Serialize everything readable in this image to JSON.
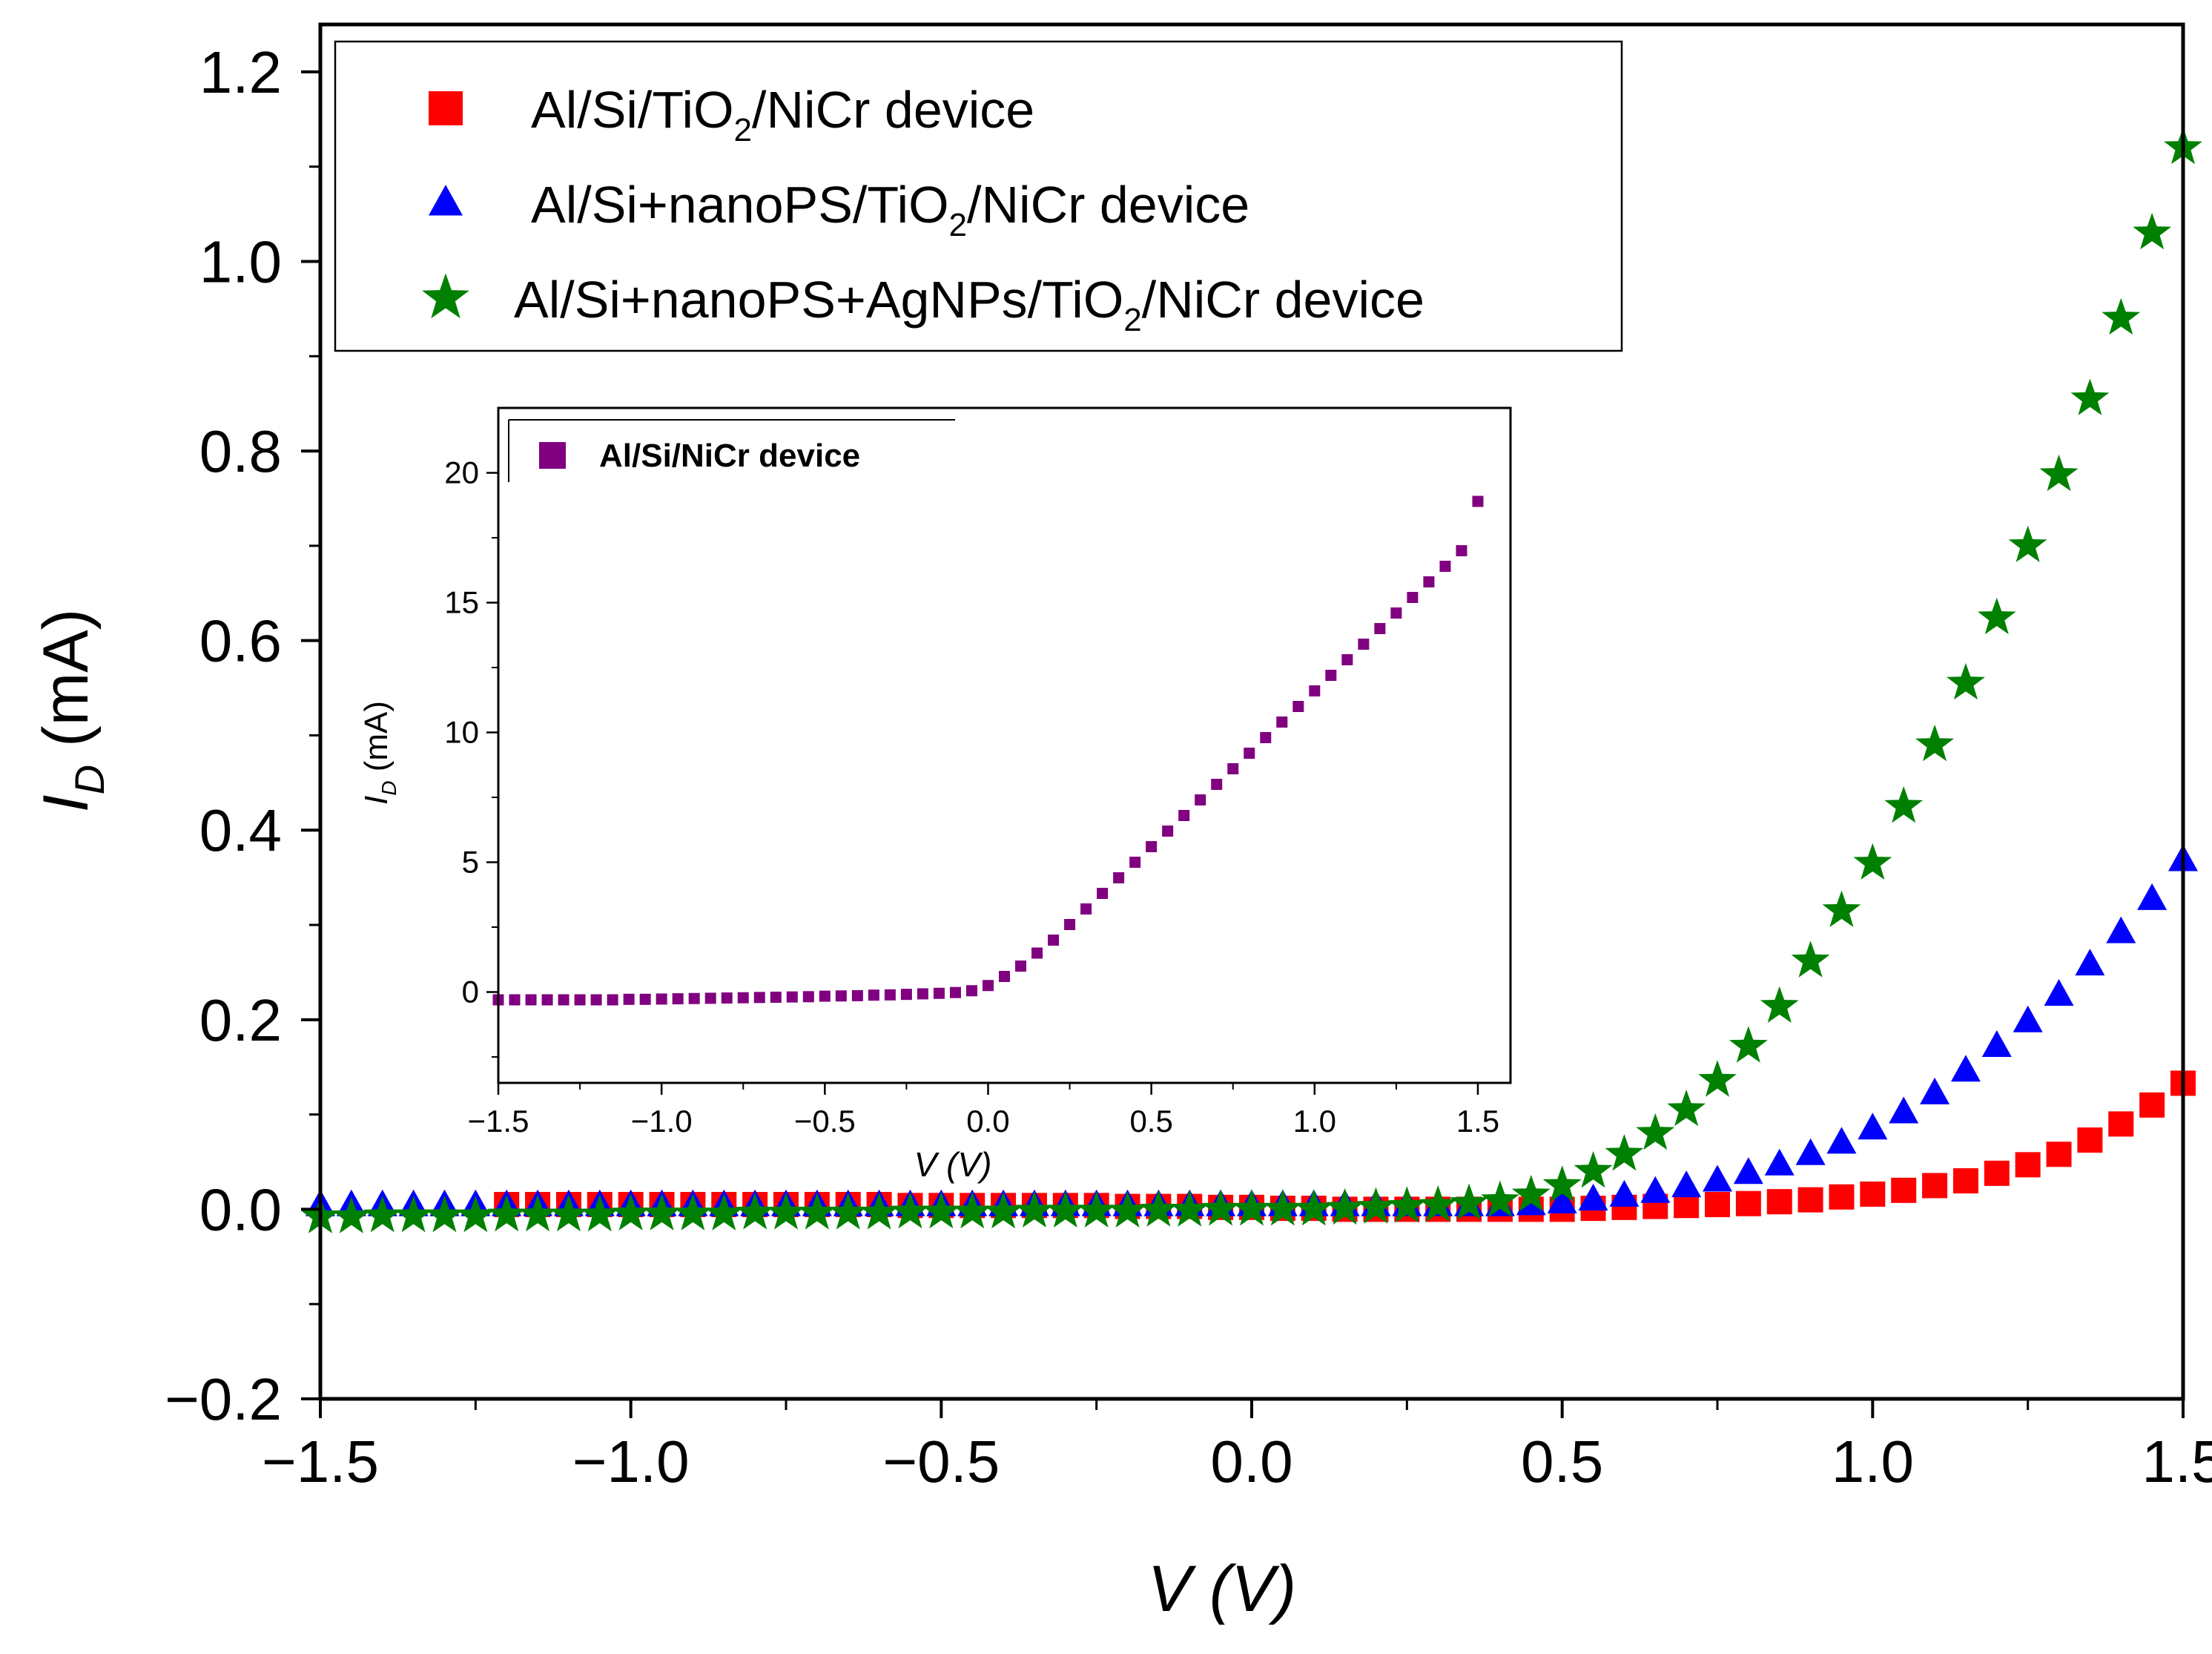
{
  "chart_data": [
    {
      "type": "scatter",
      "title": "",
      "xlabel": {
        "var": "V",
        "unit": "(V)"
      },
      "ylabel": {
        "var": "I",
        "sub": "D",
        "unit": "(mA)"
      },
      "xlim": [
        -1.5,
        1.5
      ],
      "ylim": [
        -0.2,
        1.25
      ],
      "xticks": [
        -1.5,
        -1.0,
        -0.5,
        0.0,
        0.5,
        1.0,
        1.5
      ],
      "xtick_labels": [
        "−1.5",
        "−1.0",
        "−0.5",
        "0.0",
        "0.5",
        "1.0",
        "1.5"
      ],
      "yticks": [
        -0.2,
        0.0,
        0.2,
        0.4,
        0.6,
        0.8,
        1.0,
        1.2
      ],
      "ytick_labels": [
        "−0.2",
        "0.0",
        "0.2",
        "0.4",
        "0.6",
        "0.8",
        "1.0",
        "1.2"
      ],
      "grid": false,
      "legend_position": "top-left",
      "series": [
        {
          "name": "Al/Si/TiO2/NiCr device",
          "legend": {
            "pre": "Al/Si/TiO",
            "sub": "2",
            "post": "/NiCr device"
          },
          "marker": "square",
          "color": "#ff0000",
          "x": [
            -1.2,
            -1.15,
            -1.1,
            -1.05,
            -1.0,
            -0.95,
            -0.9,
            -0.85,
            -0.8,
            -0.75,
            -0.7,
            -0.65,
            -0.6,
            -0.55,
            -0.5,
            -0.45,
            -0.4,
            -0.35,
            -0.3,
            -0.25,
            -0.2,
            -0.15,
            -0.1,
            -0.05,
            0.0,
            0.05,
            0.1,
            0.15,
            0.2,
            0.25,
            0.3,
            0.35,
            0.4,
            0.45,
            0.5,
            0.55,
            0.6,
            0.65,
            0.7,
            0.75,
            0.8,
            0.85,
            0.9,
            0.95,
            1.0,
            1.05,
            1.1,
            1.15,
            1.2,
            1.25,
            1.3,
            1.35,
            1.4,
            1.45,
            1.5
          ],
          "y": [
            0.005,
            0.005,
            0.005,
            0.005,
            0.005,
            0.005,
            0.005,
            0.005,
            0.005,
            0.005,
            0.005,
            0.005,
            0.005,
            0.004,
            0.004,
            0.004,
            0.004,
            0.004,
            0.004,
            0.004,
            0.003,
            0.003,
            0.003,
            0.002,
            0.002,
            0.001,
            0.001,
            0.0,
            0.0,
            0.0,
            0.0,
            0.0,
            0.0,
            0.0,
            0.0,
            0.001,
            0.002,
            0.003,
            0.004,
            0.005,
            0.006,
            0.008,
            0.01,
            0.013,
            0.016,
            0.02,
            0.025,
            0.03,
            0.038,
            0.047,
            0.058,
            0.073,
            0.09,
            0.11,
            0.133
          ]
        },
        {
          "name": "Al/Si+nanoPS/TiO2/NiCr device",
          "legend": {
            "pre": "Al/Si+nanoPS/TiO",
            "sub": "2",
            "post": "/NiCr device"
          },
          "marker": "triangle",
          "color": "#0000ff",
          "x": [
            -1.5,
            -1.45,
            -1.4,
            -1.35,
            -1.3,
            -1.25,
            -1.2,
            -1.15,
            -1.1,
            -1.05,
            -1.0,
            -0.95,
            -0.9,
            -0.85,
            -0.8,
            -0.75,
            -0.7,
            -0.65,
            -0.6,
            -0.55,
            -0.5,
            -0.45,
            -0.4,
            -0.35,
            -0.3,
            -0.25,
            -0.2,
            -0.15,
            -0.1,
            -0.05,
            0.0,
            0.05,
            0.1,
            0.15,
            0.2,
            0.25,
            0.3,
            0.35,
            0.4,
            0.45,
            0.5,
            0.55,
            0.6,
            0.65,
            0.7,
            0.75,
            0.8,
            0.85,
            0.9,
            0.95,
            1.0,
            1.05,
            1.1,
            1.15,
            1.2,
            1.25,
            1.3,
            1.35,
            1.4,
            1.45,
            1.5
          ],
          "y": [
            0.004,
            0.004,
            0.004,
            0.004,
            0.004,
            0.004,
            0.004,
            0.004,
            0.004,
            0.004,
            0.004,
            0.004,
            0.004,
            0.004,
            0.004,
            0.004,
            0.004,
            0.004,
            0.004,
            0.004,
            0.004,
            0.004,
            0.004,
            0.004,
            0.004,
            0.004,
            0.004,
            0.004,
            0.004,
            0.004,
            0.004,
            0.004,
            0.004,
            0.004,
            0.004,
            0.004,
            0.004,
            0.004,
            0.004,
            0.005,
            0.007,
            0.01,
            0.014,
            0.018,
            0.024,
            0.03,
            0.038,
            0.047,
            0.058,
            0.07,
            0.085,
            0.102,
            0.122,
            0.146,
            0.172,
            0.198,
            0.226,
            0.258,
            0.292,
            0.327,
            0.368
          ]
        },
        {
          "name": "Al/Si+nanoPS+AgNPs/TiO2/NiCr device",
          "legend": {
            "pre": "Al/Si+nanoPS+AgNPs/TiO",
            "sub": "2",
            "post": "/NiCr device"
          },
          "marker": "star",
          "color": "#008000",
          "x": [
            -1.5,
            -1.45,
            -1.4,
            -1.35,
            -1.3,
            -1.25,
            -1.2,
            -1.15,
            -1.1,
            -1.05,
            -1.0,
            -0.95,
            -0.9,
            -0.85,
            -0.8,
            -0.75,
            -0.7,
            -0.65,
            -0.6,
            -0.55,
            -0.5,
            -0.45,
            -0.4,
            -0.35,
            -0.3,
            -0.25,
            -0.2,
            -0.15,
            -0.1,
            -0.05,
            0.0,
            0.05,
            0.1,
            0.15,
            0.2,
            0.25,
            0.3,
            0.35,
            0.4,
            0.45,
            0.5,
            0.55,
            0.6,
            0.65,
            0.7,
            0.75,
            0.8,
            0.85,
            0.9,
            0.95,
            1.0,
            1.05,
            1.1,
            1.15,
            1.2,
            1.25,
            1.3,
            1.35,
            1.4,
            1.45,
            1.5
          ],
          "y": [
            -0.008,
            -0.008,
            -0.007,
            -0.007,
            -0.007,
            -0.007,
            -0.006,
            -0.006,
            -0.006,
            -0.006,
            -0.005,
            -0.005,
            -0.005,
            -0.005,
            -0.004,
            -0.004,
            -0.004,
            -0.004,
            -0.004,
            -0.003,
            -0.003,
            -0.003,
            -0.003,
            -0.002,
            -0.002,
            -0.002,
            -0.002,
            -0.001,
            -0.001,
            0.0,
            0.0,
            0.0,
            0.0,
            0.001,
            0.002,
            0.003,
            0.004,
            0.006,
            0.009,
            0.015,
            0.025,
            0.04,
            0.058,
            0.08,
            0.105,
            0.136,
            0.172,
            0.214,
            0.262,
            0.315,
            0.365,
            0.425,
            0.49,
            0.555,
            0.624,
            0.7,
            0.775,
            0.855,
            0.94,
            1.03,
            1.12
          ]
        }
      ]
    },
    {
      "type": "scatter",
      "role": "inset",
      "title": "",
      "xlabel": {
        "var": "V",
        "unit": "(V)"
      },
      "ylabel": {
        "var": "I",
        "sub": "D",
        "unit": "(mA)"
      },
      "xlim": [
        -1.5,
        1.6
      ],
      "ylim": [
        -3.5,
        22.5
      ],
      "xticks": [
        -1.5,
        -1.0,
        -0.5,
        0.0,
        0.5,
        1.0,
        1.5
      ],
      "xtick_labels": [
        "−1.5",
        "−1.0",
        "−0.5",
        "0.0",
        "0.5",
        "1.0",
        "1.5"
      ],
      "yticks": [
        0,
        5,
        10,
        15,
        20
      ],
      "ytick_labels": [
        "0",
        "5",
        "10",
        "15",
        "20"
      ],
      "grid": false,
      "legend_position": "top-left",
      "series": [
        {
          "name": "Al/Si/NiCr device",
          "marker": "square",
          "color": "#800080",
          "x": [
            -1.5,
            -1.45,
            -1.4,
            -1.35,
            -1.3,
            -1.25,
            -1.2,
            -1.15,
            -1.1,
            -1.05,
            -1.0,
            -0.95,
            -0.9,
            -0.85,
            -0.8,
            -0.75,
            -0.7,
            -0.65,
            -0.6,
            -0.55,
            -0.5,
            -0.45,
            -0.4,
            -0.35,
            -0.3,
            -0.25,
            -0.2,
            -0.15,
            -0.1,
            -0.05,
            0.0,
            0.05,
            0.1,
            0.15,
            0.2,
            0.25,
            0.3,
            0.35,
            0.4,
            0.45,
            0.5,
            0.55,
            0.6,
            0.65,
            0.7,
            0.75,
            0.8,
            0.85,
            0.9,
            0.95,
            1.0,
            1.05,
            1.1,
            1.15,
            1.2,
            1.25,
            1.3,
            1.35,
            1.4,
            1.45,
            1.5
          ],
          "y": [
            -0.3,
            -0.3,
            -0.3,
            -0.3,
            -0.3,
            -0.3,
            -0.3,
            -0.3,
            -0.28,
            -0.28,
            -0.27,
            -0.26,
            -0.25,
            -0.24,
            -0.23,
            -0.22,
            -0.21,
            -0.2,
            -0.19,
            -0.18,
            -0.16,
            -0.15,
            -0.14,
            -0.12,
            -0.11,
            -0.09,
            -0.07,
            -0.05,
            -0.02,
            0.05,
            0.25,
            0.6,
            1.0,
            1.5,
            2.0,
            2.6,
            3.2,
            3.8,
            4.4,
            5.0,
            5.6,
            6.2,
            6.8,
            7.4,
            8.0,
            8.6,
            9.2,
            9.8,
            10.4,
            11.0,
            11.6,
            12.2,
            12.8,
            13.4,
            14.0,
            14.6,
            15.2,
            15.8,
            16.4,
            17.0,
            18.9
          ]
        }
      ]
    }
  ]
}
